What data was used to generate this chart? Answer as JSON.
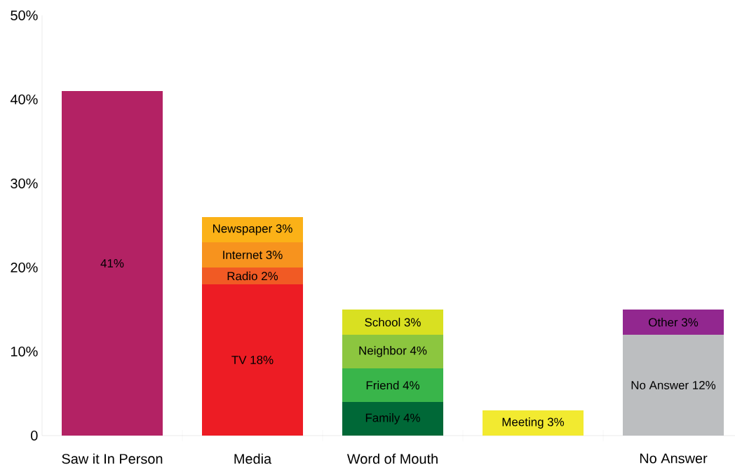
{
  "chart_data": {
    "type": "bar",
    "stacked": true,
    "categories": [
      "Saw it In Person",
      "Media",
      "Word of Mouth",
      null,
      "No Answer"
    ],
    "ylim": [
      0,
      50
    ],
    "yticks": [
      0,
      {
        "value": 10,
        "label": "10%"
      },
      {
        "value": 20,
        "label": "20%"
      },
      {
        "value": 30,
        "label": "30%"
      },
      {
        "value": 40,
        "label": "40%"
      },
      {
        "value": 50,
        "label": "50%"
      }
    ],
    "grid": false,
    "series": [
      {
        "values": [
          41,
          18,
          4,
          3,
          12
        ],
        "colors": [
          "#b32264",
          "#ed1c24",
          "#006837",
          "#f2ea30",
          "#bcbec0"
        ],
        "value_labels": [
          "41%",
          "TV 18%",
          "Family 4%",
          "Meeting 3%",
          "No Answer 12%"
        ]
      },
      {
        "values": [
          null,
          2,
          4,
          null,
          3
        ],
        "colors": [
          null,
          "#f15a24",
          "#39b54a",
          null,
          "#92278f"
        ],
        "value_labels": [
          null,
          "Radio 2%",
          "Friend 4%",
          null,
          "Other 3%"
        ]
      },
      {
        "values": [
          null,
          3,
          4,
          null,
          null
        ],
        "colors": [
          null,
          "#f7931e",
          "#8cc63f",
          null,
          null
        ],
        "value_labels": [
          null,
          "Internet 3%",
          "Neighbor 4%",
          null,
          null
        ]
      },
      {
        "values": [
          null,
          3,
          3,
          null,
          null
        ],
        "colors": [
          null,
          "#fbb117",
          "#d9e021",
          null,
          null
        ],
        "value_labels": [
          null,
          "Newspaper 3%",
          "School 3%",
          null,
          null
        ]
      }
    ]
  }
}
